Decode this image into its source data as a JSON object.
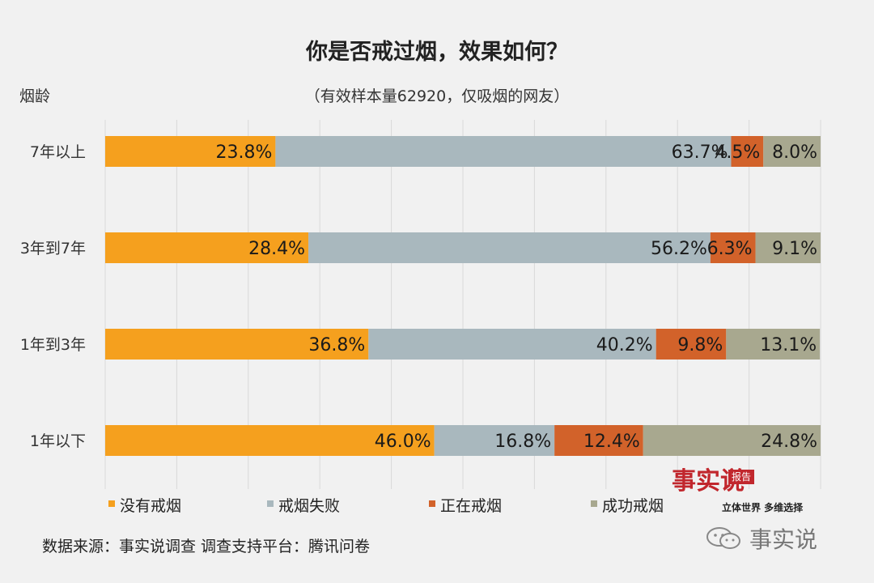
{
  "chart_data": {
    "type": "bar",
    "orientation": "horizontal",
    "stacked": true,
    "title": "你是否戒过烟，效果如何？",
    "subtitle": "（有效样本量62920，仅吸烟的网友）",
    "ylabel": "烟龄",
    "categories": [
      "7年以上",
      "3年到7年",
      "1年到3年",
      "1年以下"
    ],
    "series": [
      {
        "name": "没有戒烟",
        "color": "#f5a01e",
        "values": [
          23.8,
          28.4,
          36.8,
          46.0
        ]
      },
      {
        "name": "戒烟失败",
        "color": "#a9b8be",
        "values": [
          63.7,
          56.2,
          40.2,
          16.8
        ]
      },
      {
        "name": "正在戒烟",
        "color": "#d2622a",
        "values": [
          4.5,
          6.3,
          9.8,
          12.4
        ]
      },
      {
        "name": "成功戒烟",
        "color": "#a8a88f",
        "values": [
          8.0,
          9.1,
          13.1,
          24.8
        ]
      }
    ],
    "xlim": [
      0,
      100
    ],
    "grid": true,
    "legend_position": "bottom",
    "value_suffix": "%"
  },
  "source": "数据来源：事实说调查   调查支持平台：腾讯问卷",
  "brand": {
    "logo_text": "事实说",
    "badge": "报告",
    "slogan": "立体世界 多维选择",
    "wechat_name": "事实说"
  }
}
